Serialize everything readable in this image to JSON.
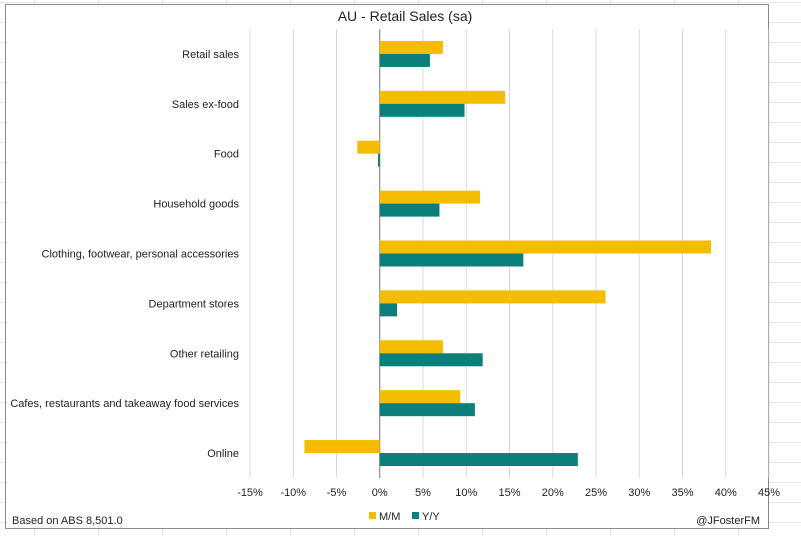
{
  "chart_data": {
    "type": "bar",
    "orientation": "horizontal",
    "title": "AU - Retail Sales (sa)",
    "categories": [
      "Retail sales",
      "Sales ex-food",
      "Food",
      "Household goods",
      "Clothing, footwear, personal accessories",
      "Department stores",
      "Other retailing",
      "Cafes, restaurants and takeaway food services",
      "Online"
    ],
    "series": [
      {
        "name": "M/M",
        "color": "#f5bd02",
        "values": [
          7.3,
          14.5,
          -2.6,
          11.6,
          38.3,
          26.1,
          7.3,
          9.3,
          -8.7
        ]
      },
      {
        "name": "Y/Y",
        "color": "#0b7f7a",
        "values": [
          5.8,
          9.8,
          -0.2,
          6.9,
          16.6,
          2.0,
          11.9,
          11.0,
          22.9
        ]
      }
    ],
    "xlim": [
      -15,
      45
    ],
    "xticks": [
      "-15%",
      "-10%",
      "-5%",
      "0%",
      "5%",
      "10%",
      "15%",
      "20%",
      "25%",
      "30%",
      "35%",
      "40%",
      "45%"
    ],
    "grid": "vertical",
    "legend": "bottom-center"
  },
  "footer": {
    "source": "Based on ABS 8,501.0",
    "credit": "@JFosterFM"
  }
}
